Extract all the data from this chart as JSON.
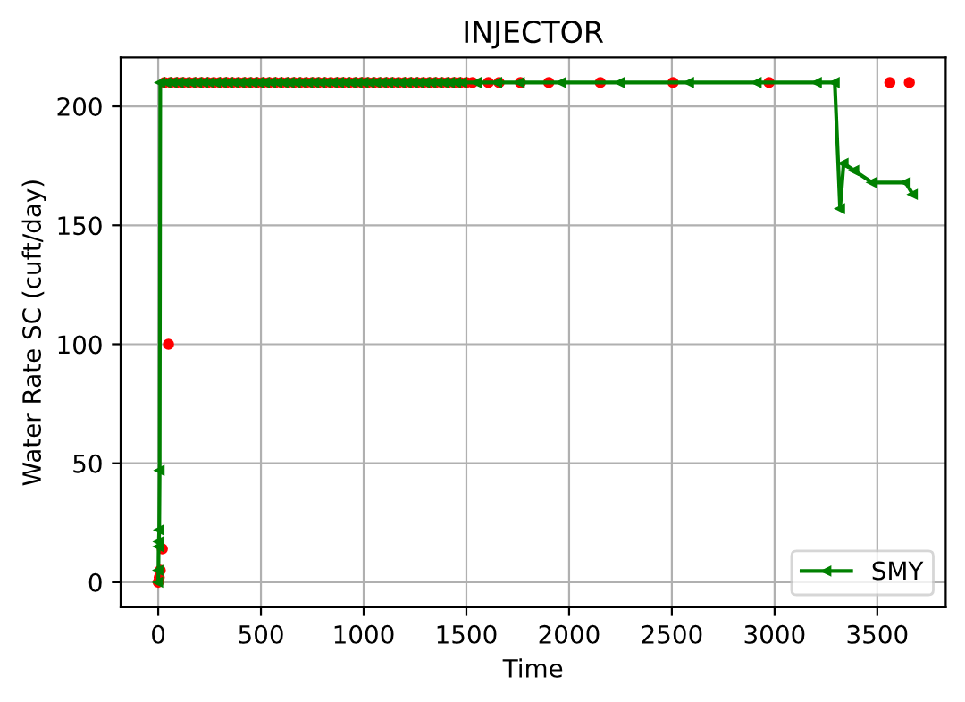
{
  "chart_data": {
    "type": "line",
    "title": "INJECTOR",
    "xlabel": "Time",
    "ylabel": "Water Rate SC (cuft/day)",
    "xlim": [
      -183,
      3833
    ],
    "ylim": [
      -10.5,
      220.5
    ],
    "xticks": [
      0,
      500,
      1000,
      1500,
      2000,
      2500,
      3000,
      3500
    ],
    "yticks": [
      0,
      50,
      100,
      150,
      200
    ],
    "grid": true,
    "legend": "bottom right",
    "series": [
      {
        "type": "scatter",
        "marker": "circle",
        "color": "#ff0000",
        "x": [
          0,
          5,
          10,
          20,
          50,
          30,
          60,
          90,
          120,
          150,
          180,
          210,
          240,
          270,
          300,
          330,
          360,
          390,
          420,
          450,
          480,
          510,
          540,
          570,
          600,
          630,
          660,
          690,
          720,
          750,
          780,
          810,
          840,
          870,
          900,
          930,
          960,
          990,
          1020,
          1050,
          1080,
          1110,
          1140,
          1170,
          1200,
          1230,
          1260,
          1290,
          1320,
          1350,
          1380,
          1410,
          1440,
          1470,
          1500,
          1530,
          1607,
          1659,
          1763,
          1901,
          2152,
          2506,
          2973,
          3561,
          3656
        ],
        "values": [
          0,
          2,
          5,
          14,
          100,
          210,
          210,
          210,
          210,
          210,
          210,
          210,
          210,
          210,
          210,
          210,
          210,
          210,
          210,
          210,
          210,
          210,
          210,
          210,
          210,
          210,
          210,
          210,
          210,
          210,
          210,
          210,
          210,
          210,
          210,
          210,
          210,
          210,
          210,
          210,
          210,
          210,
          210,
          210,
          210,
          210,
          210,
          210,
          210,
          210,
          210,
          210,
          210,
          210,
          210,
          210,
          210,
          210,
          210,
          210,
          210,
          210,
          210,
          210,
          210
        ]
      },
      {
        "name": "SMY",
        "marker": "triangle",
        "line_style": "solid",
        "color": "#008000",
        "x": [
          0,
          1,
          2,
          3,
          5,
          7,
          10,
          40,
          70,
          100,
          130,
          160,
          190,
          220,
          250,
          280,
          310,
          340,
          370,
          400,
          430,
          460,
          490,
          520,
          550,
          580,
          610,
          640,
          670,
          700,
          730,
          760,
          790,
          820,
          850,
          880,
          910,
          940,
          970,
          1000,
          1030,
          1060,
          1090,
          1120,
          1150,
          1180,
          1210,
          1240,
          1270,
          1300,
          1330,
          1360,
          1390,
          1420,
          1450,
          1480,
          1550,
          1650,
          1760,
          1962,
          2247,
          2584,
          2913,
          3206,
          3293,
          3319,
          3336,
          3388,
          3474,
          3638,
          3673
        ],
        "values": [
          0,
          5,
          15,
          17,
          22,
          47,
          210,
          210,
          210,
          210,
          210,
          210,
          210,
          210,
          210,
          210,
          210,
          210,
          210,
          210,
          210,
          210,
          210,
          210,
          210,
          210,
          210,
          210,
          210,
          210,
          210,
          210,
          210,
          210,
          210,
          210,
          210,
          210,
          210,
          210,
          210,
          210,
          210,
          210,
          210,
          210,
          210,
          210,
          210,
          210,
          210,
          210,
          210,
          210,
          210,
          210,
          210,
          210,
          210,
          210,
          210,
          210,
          210,
          210,
          210,
          157,
          176,
          173,
          168,
          168,
          163
        ]
      }
    ]
  }
}
